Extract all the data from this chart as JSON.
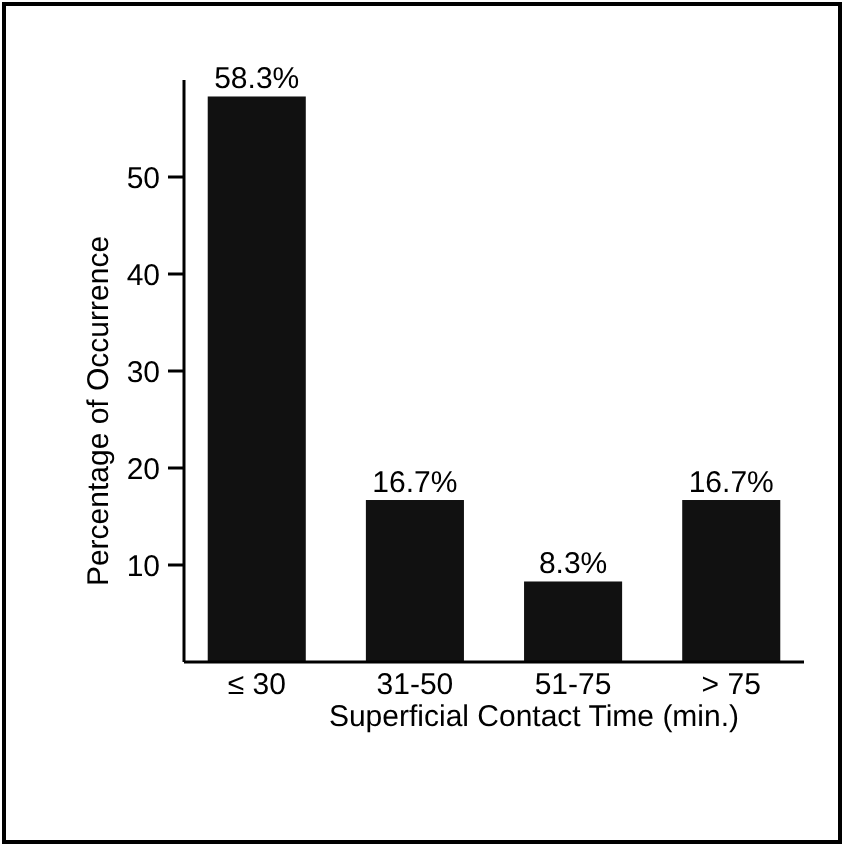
{
  "chart_data": {
    "type": "bar",
    "xlabel": "Superficial Contact Time (min.)",
    "ylabel": "Percentage of Occurrence",
    "categories": [
      "≤ 30",
      "31-50",
      "51-75",
      "> 75"
    ],
    "values": [
      58.3,
      16.7,
      8.3,
      16.7
    ],
    "value_labels": [
      "58.3%",
      "16.7%",
      "8.3%",
      "16.7%"
    ],
    "color": "#111111",
    "ylim": [
      0,
      60
    ],
    "yticks": [
      10,
      20,
      30,
      40,
      50
    ],
    "grid": false
  }
}
